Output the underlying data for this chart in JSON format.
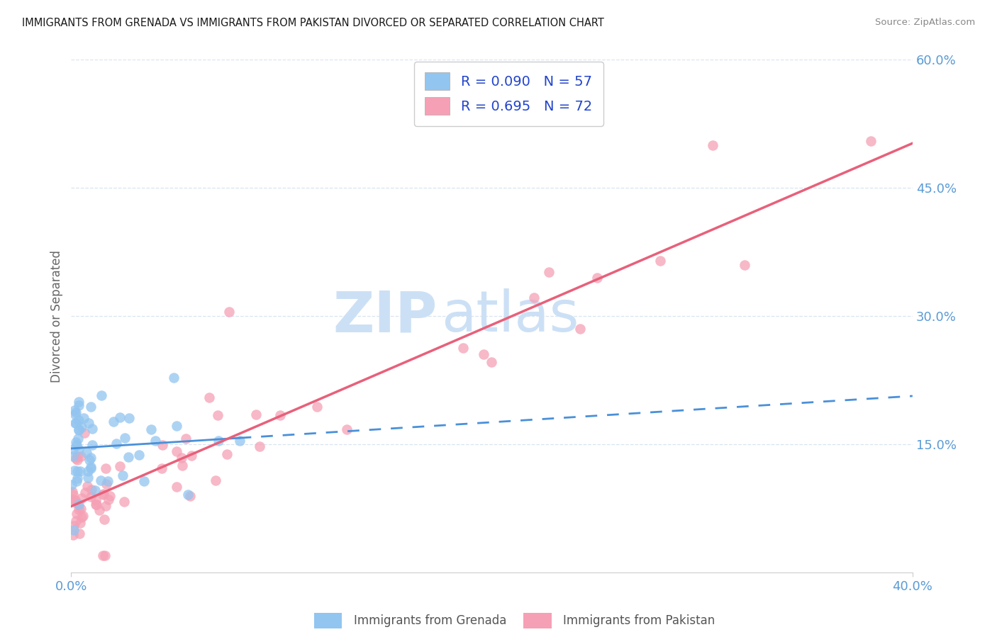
{
  "title": "IMMIGRANTS FROM GRENADA VS IMMIGRANTS FROM PAKISTAN DIVORCED OR SEPARATED CORRELATION CHART",
  "source": "Source: ZipAtlas.com",
  "ylabel": "Divorced or Separated",
  "xmin": 0.0,
  "xmax": 0.4,
  "ymin": 0.0,
  "ymax": 0.6,
  "grenada_color": "#92c5f0",
  "pakistan_color": "#f5a0b5",
  "grenada_line_color": "#4a90d9",
  "pakistan_line_color": "#e8607a",
  "grenada_R": 0.09,
  "grenada_N": 57,
  "pakistan_R": 0.695,
  "pakistan_N": 72,
  "watermark_zip": "ZIP",
  "watermark_atlas": "atlas",
  "watermark_color": "#cce0f5",
  "background_color": "#ffffff",
  "grid_color": "#d8e4f0",
  "tick_color": "#5b9bd5",
  "legend_text_color": "#2244cc"
}
